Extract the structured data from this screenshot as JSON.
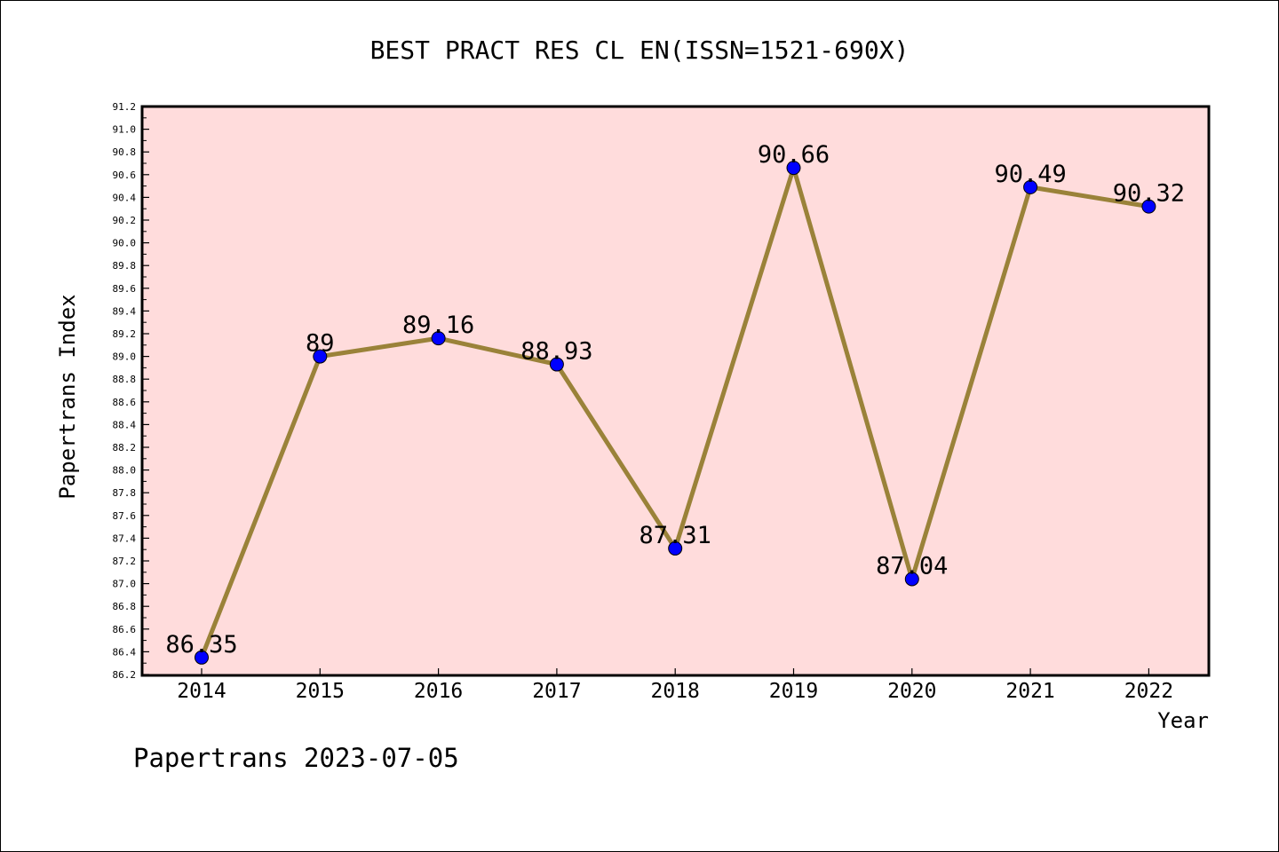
{
  "chart_data": {
    "type": "line",
    "title": "BEST PRACT RES CL EN(ISSN=1521-690X)",
    "xlabel": "Year",
    "ylabel": "Papertrans Index",
    "categories": [
      "2014",
      "2015",
      "2016",
      "2017",
      "2018",
      "2019",
      "2020",
      "2021",
      "2022"
    ],
    "values": [
      86.35,
      89,
      89.16,
      88.93,
      87.31,
      90.66,
      87.04,
      90.49,
      90.32
    ],
    "data_labels": [
      "86.35",
      "89",
      "89.16",
      "88.93",
      "87.31",
      "90.66",
      "87.04",
      "90.49",
      "90.32"
    ],
    "ylim": [
      86.2,
      91.2
    ],
    "yticks": [
      "86.2",
      "86.4",
      "86.6",
      "86.8",
      "87.0",
      "87.2",
      "87.4",
      "87.6",
      "87.8",
      "88.0",
      "88.2",
      "88.4",
      "88.6",
      "88.8",
      "89.0",
      "89.2",
      "89.4",
      "89.6",
      "89.8",
      "90.0",
      "90.2",
      "90.4",
      "90.6",
      "90.8",
      "91.0",
      "91.2"
    ],
    "grid": false,
    "legend": "none",
    "colors": {
      "plot_background": "#ffdcdc",
      "line": "#9a8239",
      "marker": "#0000ff",
      "axis": "#000000"
    }
  },
  "footer": {
    "caption": "Papertrans 2023-07-05"
  }
}
